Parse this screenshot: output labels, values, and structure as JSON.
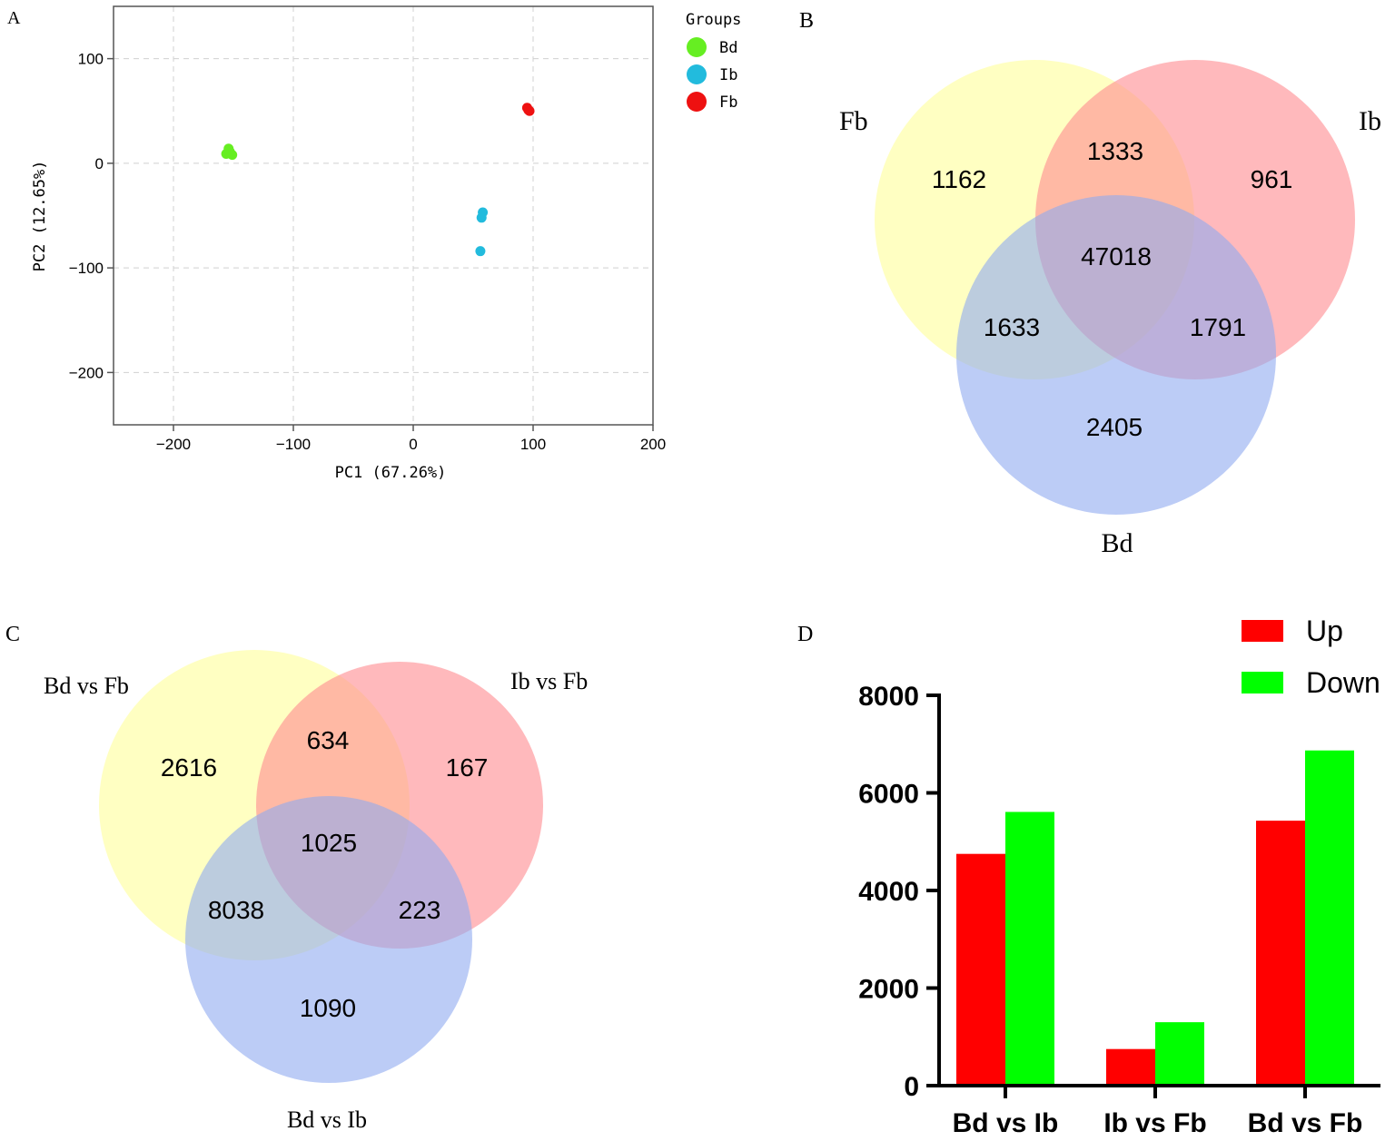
{
  "chart_data": [
    {
      "panel": "A",
      "type": "scatter",
      "title": "",
      "xlabel": "PC1 (67.26%)",
      "ylabel": "PC2 (12.65%)",
      "xlim": [
        -250,
        200
      ],
      "ylim": [
        -250,
        150
      ],
      "xticks": [
        -200,
        -100,
        0,
        100,
        200
      ],
      "yticks": [
        100,
        0,
        -100,
        -200
      ],
      "xtick_labels": [
        "−200",
        "−100",
        "0",
        "100",
        "200"
      ],
      "ytick_labels": [
        "100",
        "0",
        "−100",
        "−200"
      ],
      "grid": true,
      "legend_title": "Groups",
      "legend_position": "right",
      "series": [
        {
          "name": "Bd",
          "color": "#66ee22",
          "points": [
            [
              -154,
              14
            ],
            [
              -156,
              9
            ],
            [
              -151,
              8
            ],
            [
              -153,
              11
            ]
          ]
        },
        {
          "name": "Ib",
          "color": "#22bbdd",
          "points": [
            [
              58,
              -47
            ],
            [
              57,
              -52
            ],
            [
              56,
              -84
            ]
          ]
        },
        {
          "name": "Fb",
          "color": "#ee1111",
          "points": [
            [
              95,
              53
            ],
            [
              97,
              50
            ],
            [
              96,
              51
            ]
          ]
        }
      ]
    },
    {
      "panel": "B",
      "type": "venn",
      "sets": [
        {
          "label": "Fb",
          "color": "#ffff99"
        },
        {
          "label": "Ib",
          "color": "#ff8a90"
        },
        {
          "label": "Bd",
          "color": "#8faaf0"
        }
      ],
      "regions": {
        "Fb_only": "1162",
        "Fb_Ib": "1333",
        "Ib_only": "961",
        "all": "47018",
        "Fb_Bd": "1633",
        "Ib_Bd": "1791",
        "Bd_only": "2405"
      }
    },
    {
      "panel": "C",
      "type": "venn",
      "sets": [
        {
          "label": "Bd vs Fb",
          "color": "#ffff99"
        },
        {
          "label": "Ib vs Fb",
          "color": "#ff8a90"
        },
        {
          "label": "Bd vs Ib",
          "color": "#8faaf0"
        }
      ],
      "regions": {
        "A_only": "2616",
        "A_B": "634",
        "B_only": "167",
        "all": "1025",
        "A_C": "8038",
        "B_C": "223",
        "C_only": "1090"
      }
    },
    {
      "panel": "D",
      "type": "bar",
      "categories": [
        "Bd vs Ib",
        "Ib vs Fb",
        "Bd vs Fb"
      ],
      "series": [
        {
          "name": "Up",
          "color": "#ff0000",
          "values": [
            4750,
            750,
            5430
          ]
        },
        {
          "name": "Down",
          "color": "#00ff00",
          "values": [
            5610,
            1300,
            6870
          ]
        }
      ],
      "ylim": [
        0,
        8000
      ],
      "yticks": [
        0,
        2000,
        4000,
        6000,
        8000
      ],
      "legend_position": "top-right",
      "xlabel": "",
      "ylabel": ""
    }
  ],
  "panel_labels": {
    "a": "A",
    "b": "B",
    "c": "C",
    "d": "D"
  }
}
